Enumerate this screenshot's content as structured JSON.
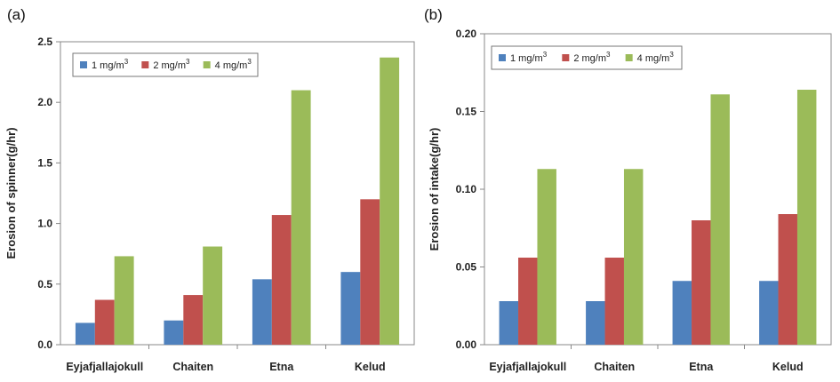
{
  "chart_data": [
    {
      "type": "bar",
      "panel_label": "(a)",
      "title": "",
      "xlabel": "",
      "ylabel": "Erosion of spinner(g/hr)",
      "ylim": [
        0,
        2.5
      ],
      "yticks": [
        "0.0",
        "0.5",
        "1.0",
        "1.5",
        "2.0",
        "2.5"
      ],
      "categories": [
        "Eyjafjallajokull",
        "Chaiten",
        "Etna",
        "Kelud"
      ],
      "grid": false,
      "legend_position": "top-left",
      "series": [
        {
          "name": "1 mg/m3",
          "legend_base": "1 mg/m",
          "legend_sup": "3",
          "color": "#4f81bd",
          "values": [
            0.18,
            0.2,
            0.54,
            0.6
          ]
        },
        {
          "name": "2 mg/m3",
          "legend_base": "2 mg/m",
          "legend_sup": "3",
          "color": "#c0504d",
          "values": [
            0.37,
            0.41,
            1.07,
            1.2
          ]
        },
        {
          "name": "4 mg/m3",
          "legend_base": "4 mg/m",
          "legend_sup": "3",
          "color": "#9bbb59",
          "values": [
            0.73,
            0.81,
            2.1,
            2.37
          ]
        }
      ]
    },
    {
      "type": "bar",
      "panel_label": "(b)",
      "title": "",
      "xlabel": "",
      "ylabel": "Erosion of intake(g/hr)",
      "ylim": [
        0,
        0.2
      ],
      "yticks": [
        "0.00",
        "0.05",
        "0.10",
        "0.15",
        "0.20"
      ],
      "categories": [
        "Eyjafjallajokull",
        "Chaiten",
        "Etna",
        "Kelud"
      ],
      "grid": false,
      "legend_position": "top-left",
      "series": [
        {
          "name": "1 mg/m3",
          "legend_base": "1 mg/m",
          "legend_sup": "3",
          "color": "#4f81bd",
          "values": [
            0.028,
            0.028,
            0.041,
            0.041
          ]
        },
        {
          "name": "2 mg/m3",
          "legend_base": "2 mg/m",
          "legend_sup": "3",
          "color": "#c0504d",
          "values": [
            0.056,
            0.056,
            0.08,
            0.084
          ]
        },
        {
          "name": "4 mg/m3",
          "legend_base": "4 mg/m",
          "legend_sup": "3",
          "color": "#9bbb59",
          "values": [
            0.113,
            0.113,
            0.161,
            0.164
          ]
        }
      ]
    }
  ]
}
